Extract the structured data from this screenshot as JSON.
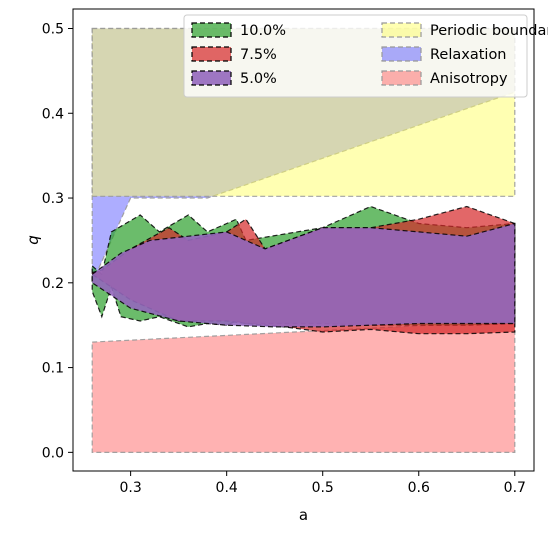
{
  "chart_data": {
    "type": "area",
    "xlabel": "a",
    "ylabel": "q",
    "xlim": [
      0.24,
      0.72
    ],
    "ylim": [
      -0.022,
      0.523
    ],
    "xticks": [
      0.3,
      0.4,
      0.5,
      0.6,
      0.7
    ],
    "xtick_labels": [
      "0.3",
      "0.4",
      "0.5",
      "0.6",
      "0.7"
    ],
    "yticks": [
      0.0,
      0.1,
      0.2,
      0.3,
      0.4,
      0.5
    ],
    "ytick_labels": [
      "0.0",
      "0.1",
      "0.2",
      "0.3",
      "0.4",
      "0.5"
    ],
    "grid": false,
    "legend_position": "top-right",
    "legend_columns": 2,
    "series": [
      {
        "name": "Anisotropy",
        "color": "#ff6666",
        "alpha": 0.5,
        "upper": {
          "x": [
            0.26,
            0.7
          ],
          "y": [
            0.13,
            0.155
          ]
        },
        "lower": {
          "x": [
            0.26,
            0.7
          ],
          "y": [
            0.0,
            0.0
          ]
        }
      },
      {
        "name": "Relaxation",
        "color": "#5b5bff",
        "alpha": 0.5,
        "upper": {
          "x": [
            0.26,
            0.7
          ],
          "y": [
            0.5,
            0.5
          ]
        },
        "lower": {
          "x": [
            0.26,
            0.3,
            0.38,
            0.7
          ],
          "y": [
            0.2,
            0.3,
            0.3,
            0.425
          ]
        }
      },
      {
        "name": "Periodic boundary",
        "color": "#ffff66",
        "alpha": 0.5,
        "upper": {
          "x": [
            0.26,
            0.7
          ],
          "y": [
            0.5,
            0.5
          ]
        },
        "lower": {
          "x": [
            0.26,
            0.7
          ],
          "y": [
            0.302,
            0.302
          ]
        }
      },
      {
        "name": "10.0%",
        "color": "#2ca02c",
        "alpha": 0.7,
        "upper": {
          "x": [
            0.26,
            0.27,
            0.28,
            0.31,
            0.33,
            0.36,
            0.38,
            0.4,
            0.41,
            0.42,
            0.5,
            0.55,
            0.6,
            0.65,
            0.7
          ],
          "y": [
            0.22,
            0.21,
            0.26,
            0.28,
            0.26,
            0.28,
            0.26,
            0.27,
            0.275,
            0.25,
            0.265,
            0.29,
            0.27,
            0.265,
            0.27
          ]
        },
        "lower": {
          "x": [
            0.26,
            0.27,
            0.28,
            0.29,
            0.31,
            0.33,
            0.36,
            0.38,
            0.4,
            0.41,
            0.42,
            0.5,
            0.55,
            0.6,
            0.65,
            0.7
          ],
          "y": [
            0.19,
            0.16,
            0.195,
            0.16,
            0.155,
            0.16,
            0.148,
            0.152,
            0.15,
            0.155,
            0.152,
            0.152,
            0.15,
            0.15,
            0.15,
            0.152
          ]
        }
      },
      {
        "name": "7.5%",
        "color": "#d62728",
        "alpha": 0.7,
        "upper": {
          "x": [
            0.26,
            0.27,
            0.3,
            0.34,
            0.36,
            0.38,
            0.4,
            0.42,
            0.44,
            0.5,
            0.55,
            0.6,
            0.65,
            0.7
          ],
          "y": [
            0.212,
            0.215,
            0.24,
            0.265,
            0.25,
            0.255,
            0.26,
            0.275,
            0.24,
            0.265,
            0.265,
            0.275,
            0.29,
            0.27
          ]
        },
        "lower": {
          "x": [
            0.26,
            0.3,
            0.35,
            0.4,
            0.42,
            0.46,
            0.48,
            0.5,
            0.55,
            0.6,
            0.65,
            0.7
          ],
          "y": [
            0.21,
            0.18,
            0.155,
            0.155,
            0.152,
            0.148,
            0.145,
            0.142,
            0.145,
            0.14,
            0.14,
            0.142
          ]
        }
      },
      {
        "name": "5.0%",
        "color": "#9467bd",
        "alpha": 0.9,
        "upper": {
          "x": [
            0.26,
            0.29,
            0.32,
            0.36,
            0.4,
            0.44,
            0.5,
            0.55,
            0.6,
            0.65,
            0.7
          ],
          "y": [
            0.21,
            0.235,
            0.25,
            0.255,
            0.26,
            0.24,
            0.265,
            0.265,
            0.26,
            0.255,
            0.27
          ]
        },
        "lower": {
          "x": [
            0.26,
            0.3,
            0.35,
            0.4,
            0.45,
            0.5,
            0.55,
            0.6,
            0.65,
            0.7
          ],
          "y": [
            0.2,
            0.17,
            0.155,
            0.15,
            0.148,
            0.148,
            0.15,
            0.152,
            0.152,
            0.152
          ]
        }
      }
    ],
    "legend_order": [
      "10.0%",
      "7.5%",
      "5.0%",
      "Periodic boundary",
      "Relaxation",
      "Anisotropy"
    ],
    "legend_edge_colors": {
      "10.0%": "#000000",
      "7.5%": "#000000",
      "5.0%": "#000000",
      "Periodic boundary": "#999999",
      "Relaxation": "#999999",
      "Anisotropy": "#999999"
    }
  }
}
